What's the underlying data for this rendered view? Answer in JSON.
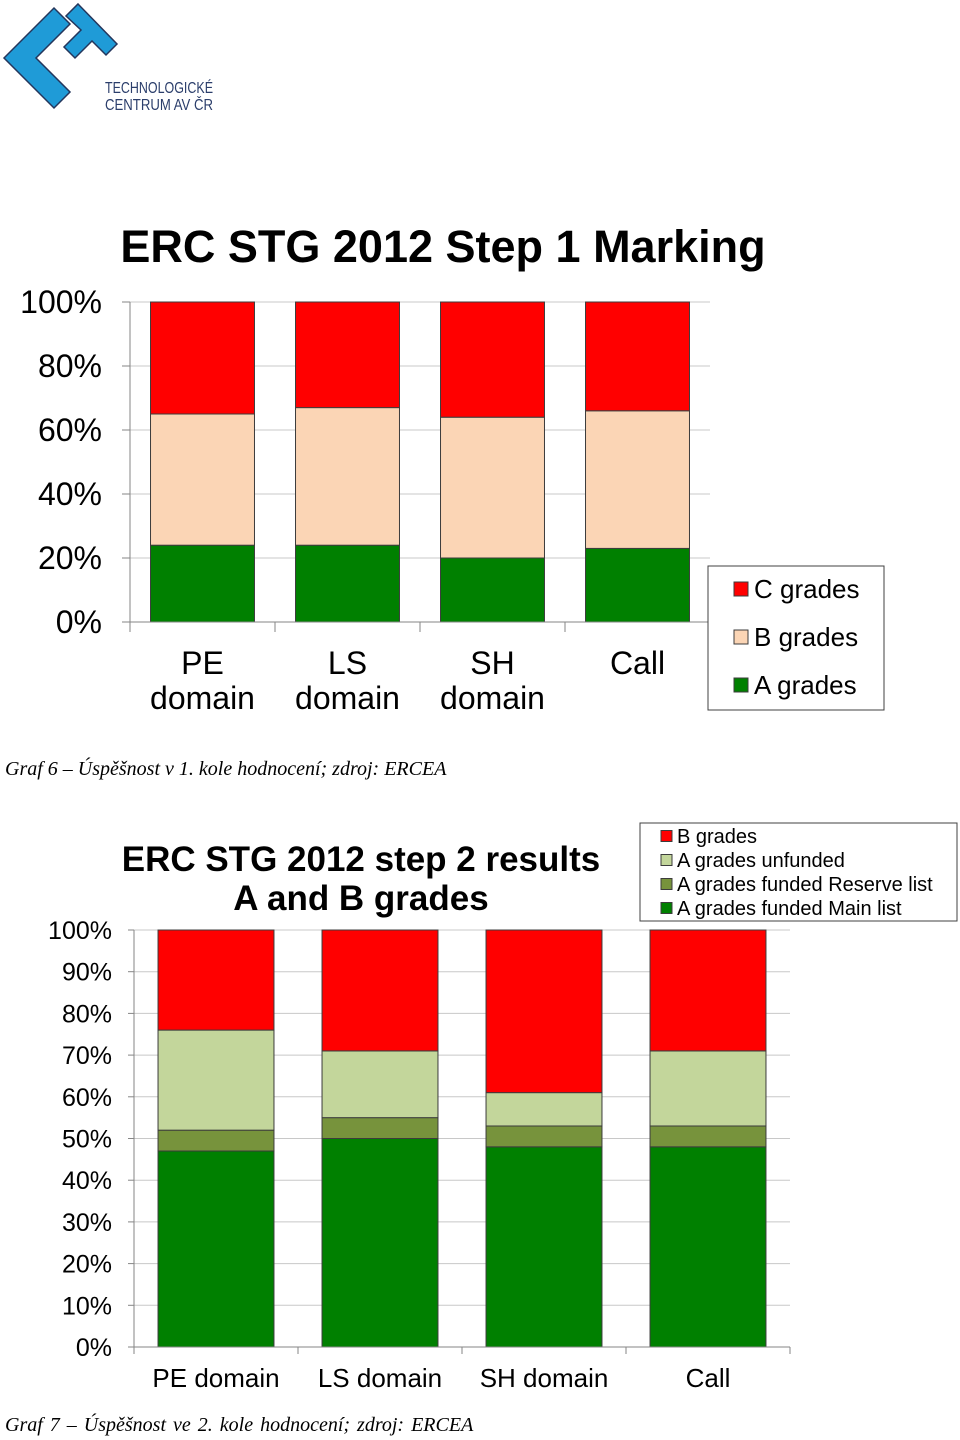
{
  "logo": {
    "icon": "tc-logo-icon",
    "line1": "TECHNOLOGICKÉ",
    "line2": "CENTRUM AV ČR",
    "colors": {
      "primary": "#1f9bd7",
      "dark": "#24365c"
    }
  },
  "captions": {
    "chart1": "Graf 6 – Úspěšnost v 1. kole hodnocení; zdroj: ERCEA",
    "chart2": "Graf 7 – Úspěšnost ve 2. kole hodnocení; zdroj: ERCEA"
  },
  "chart_data": [
    {
      "type": "bar",
      "stacked": true,
      "title": "ERC STG 2012 Step 1 Marking",
      "categories": [
        "PE domain",
        "LS domain",
        "SH domain",
        "Call"
      ],
      "series": [
        {
          "name": "A grades",
          "color": "#008000",
          "values": [
            24,
            24,
            20,
            23
          ]
        },
        {
          "name": "B grades",
          "color": "#fbd5b5",
          "values": [
            41,
            43,
            44,
            43
          ]
        },
        {
          "name": "C grades",
          "color": "#ff0000",
          "values": [
            35,
            33,
            36,
            34
          ]
        }
      ],
      "ylim": [
        0,
        100
      ],
      "y_tick_labels": [
        "0%",
        "20%",
        "40%",
        "60%",
        "80%",
        "100%"
      ],
      "grid": true,
      "legend": "right"
    },
    {
      "type": "bar",
      "stacked": true,
      "title": "ERC STG 2012 step 2 results",
      "subtitle": "A and B grades",
      "categories": [
        "PE domain",
        "LS domain",
        "SH domain",
        "Call"
      ],
      "series": [
        {
          "name": "A grades funded Main list",
          "color": "#008000",
          "values": [
            47,
            50,
            48,
            48
          ]
        },
        {
          "name": "A grades funded Reserve list",
          "color": "#77933c",
          "values": [
            5,
            5,
            5,
            5
          ]
        },
        {
          "name": "A grades unfunded",
          "color": "#c3d69b",
          "values": [
            24,
            16,
            8,
            18
          ]
        },
        {
          "name": "B grades",
          "color": "#ff0000",
          "values": [
            24,
            29,
            39,
            29
          ]
        }
      ],
      "ylim": [
        0,
        100
      ],
      "y_tick_labels": [
        "0%",
        "10%",
        "20%",
        "30%",
        "40%",
        "50%",
        "60%",
        "70%",
        "80%",
        "90%",
        "100%"
      ],
      "grid": true,
      "legend": "top-right"
    }
  ]
}
